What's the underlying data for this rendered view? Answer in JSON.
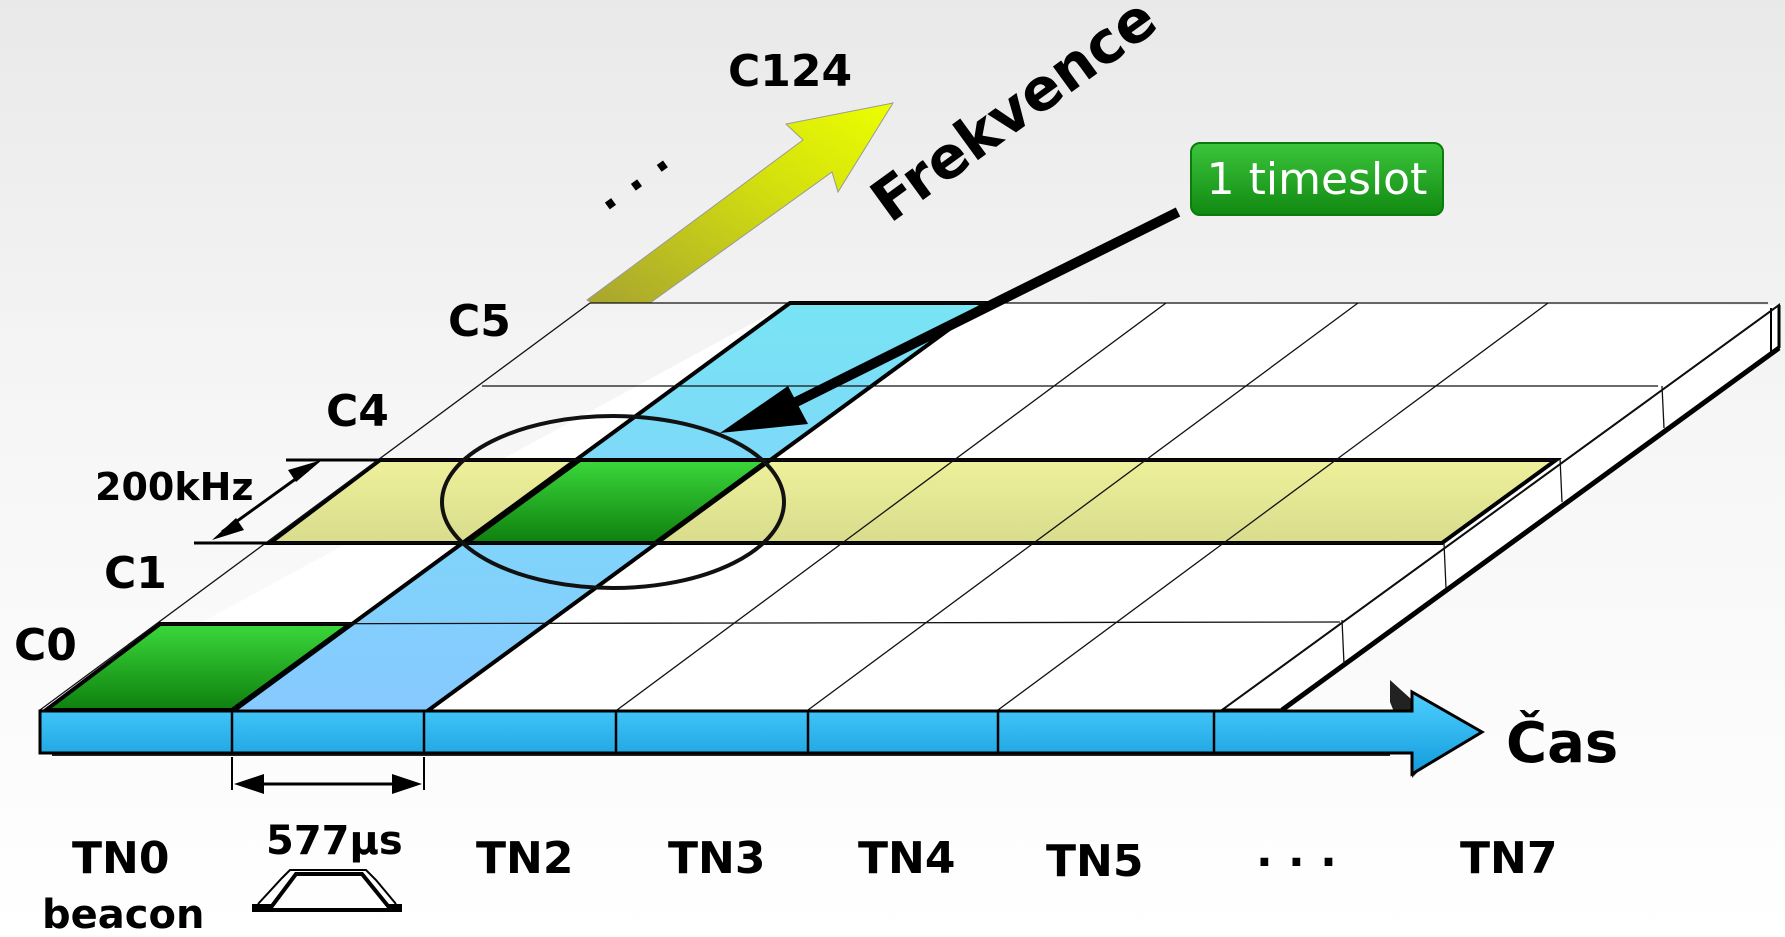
{
  "colors": {
    "background": "#efefef",
    "highlight_channel": "#e1e596",
    "timeslot_column": "#7dcfff",
    "beacon_slot": "#2db72d",
    "selected_slot": "#158f15",
    "time_arrow": "#29b6f6",
    "frequency_arrow": "#d6e00a",
    "badge": "#22a822"
  },
  "frequency_axis": {
    "label": "Frekvence",
    "top_carrier": "C124",
    "ellipsis": ". . ."
  },
  "carriers": {
    "c0": "C0",
    "c1": "C1",
    "c4": "C4",
    "c5": "C5"
  },
  "spacing_label": "200kHz",
  "time_axis": {
    "label": "Čas"
  },
  "slot_duration_label": "577µs",
  "timeslots": {
    "tn0": "TN0",
    "tn0_sub": "beacon",
    "tn2": "TN2",
    "tn3": "TN3",
    "tn4": "TN4",
    "tn5": "TN5",
    "ellipsis": ". . .",
    "tn7": "TN7"
  },
  "callout": {
    "text": "1 timeslot"
  }
}
